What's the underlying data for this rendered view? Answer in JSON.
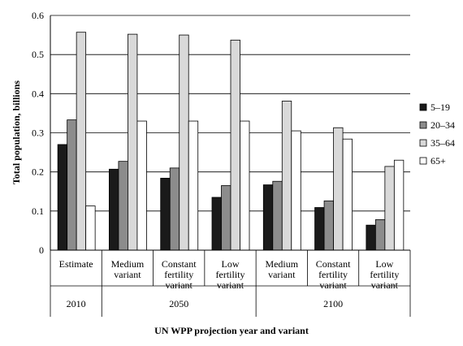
{
  "chart_data": {
    "type": "bar",
    "ylabel": "Total population, billions",
    "xlabel": "UN WPP projection year and variant",
    "ylim": [
      0,
      0.6
    ],
    "yticks": [
      "0",
      "0.1",
      "0.2",
      "0.3",
      "0.4",
      "0.5",
      "0.6"
    ],
    "grid": true,
    "legend_position": "right",
    "categories": [
      [
        "Estimate"
      ],
      [
        "Medium",
        "variant"
      ],
      [
        "Constant",
        "fertility",
        "variant"
      ],
      [
        "Low",
        "fertility",
        "variant"
      ],
      [
        "Medium",
        "variant"
      ],
      [
        "Constant",
        "fertility",
        "variant"
      ],
      [
        "Low",
        "fertility",
        "variant"
      ]
    ],
    "groups": [
      {
        "label": "2010",
        "categories": 1
      },
      {
        "label": "2050",
        "categories": 3
      },
      {
        "label": "2100",
        "categories": 3
      }
    ],
    "series": [
      {
        "name": "5–19",
        "color": "#1a1a1a",
        "values": [
          0.27,
          0.207,
          0.184,
          0.135,
          0.167,
          0.109,
          0.064
        ]
      },
      {
        "name": "20–34",
        "color": "#8c8c8c",
        "values": [
          0.333,
          0.227,
          0.21,
          0.165,
          0.176,
          0.126,
          0.078
        ]
      },
      {
        "name": "35–64",
        "color": "#d9d9d9",
        "values": [
          0.557,
          0.552,
          0.55,
          0.537,
          0.381,
          0.313,
          0.214
        ]
      },
      {
        "name": "65+",
        "color": "#ffffff",
        "values": [
          0.113,
          0.33,
          0.33,
          0.33,
          0.305,
          0.284,
          0.23
        ]
      }
    ]
  }
}
